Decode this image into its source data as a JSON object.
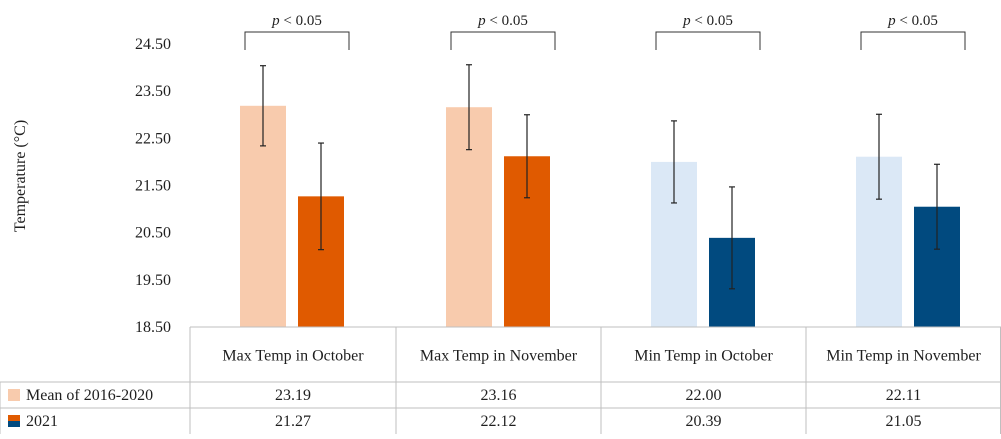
{
  "chart_data": {
    "type": "bar",
    "xlabel": "",
    "ylabel": "Temperature (°C)",
    "ylim": [
      18.5,
      24.5
    ],
    "yticks": [
      "24.50",
      "23.50",
      "22.50",
      "21.50",
      "20.50",
      "19.50",
      "18.50"
    ],
    "grid": false,
    "legend": "table-left",
    "categories": [
      "Max Temp in October",
      "Max Temp in November",
      "Min Temp in October",
      "Min Temp in November"
    ],
    "series": [
      {
        "name": "Mean of 2016-2020",
        "values": [
          23.19,
          23.16,
          22.0,
          22.11
        ],
        "labels": [
          "23.19",
          "23.16",
          "22.00",
          "22.11"
        ],
        "error": [
          0.85,
          0.9,
          0.87,
          0.9
        ],
        "colors": [
          "#f8cbad",
          "#f8cbad",
          "#dbe8f6",
          "#dbe8f6"
        ]
      },
      {
        "name": "2021",
        "values": [
          21.27,
          22.12,
          20.39,
          21.05
        ],
        "labels": [
          "21.27",
          "22.12",
          "20.39",
          "21.05"
        ],
        "error": [
          1.13,
          0.88,
          1.08,
          0.9
        ],
        "colors": [
          "#e05a00",
          "#e05a00",
          "#014a7f",
          "#014a7f"
        ]
      }
    ],
    "annotations": [
      "p < 0.05",
      "p < 0.05",
      "p < 0.05",
      "p < 0.05"
    ]
  }
}
